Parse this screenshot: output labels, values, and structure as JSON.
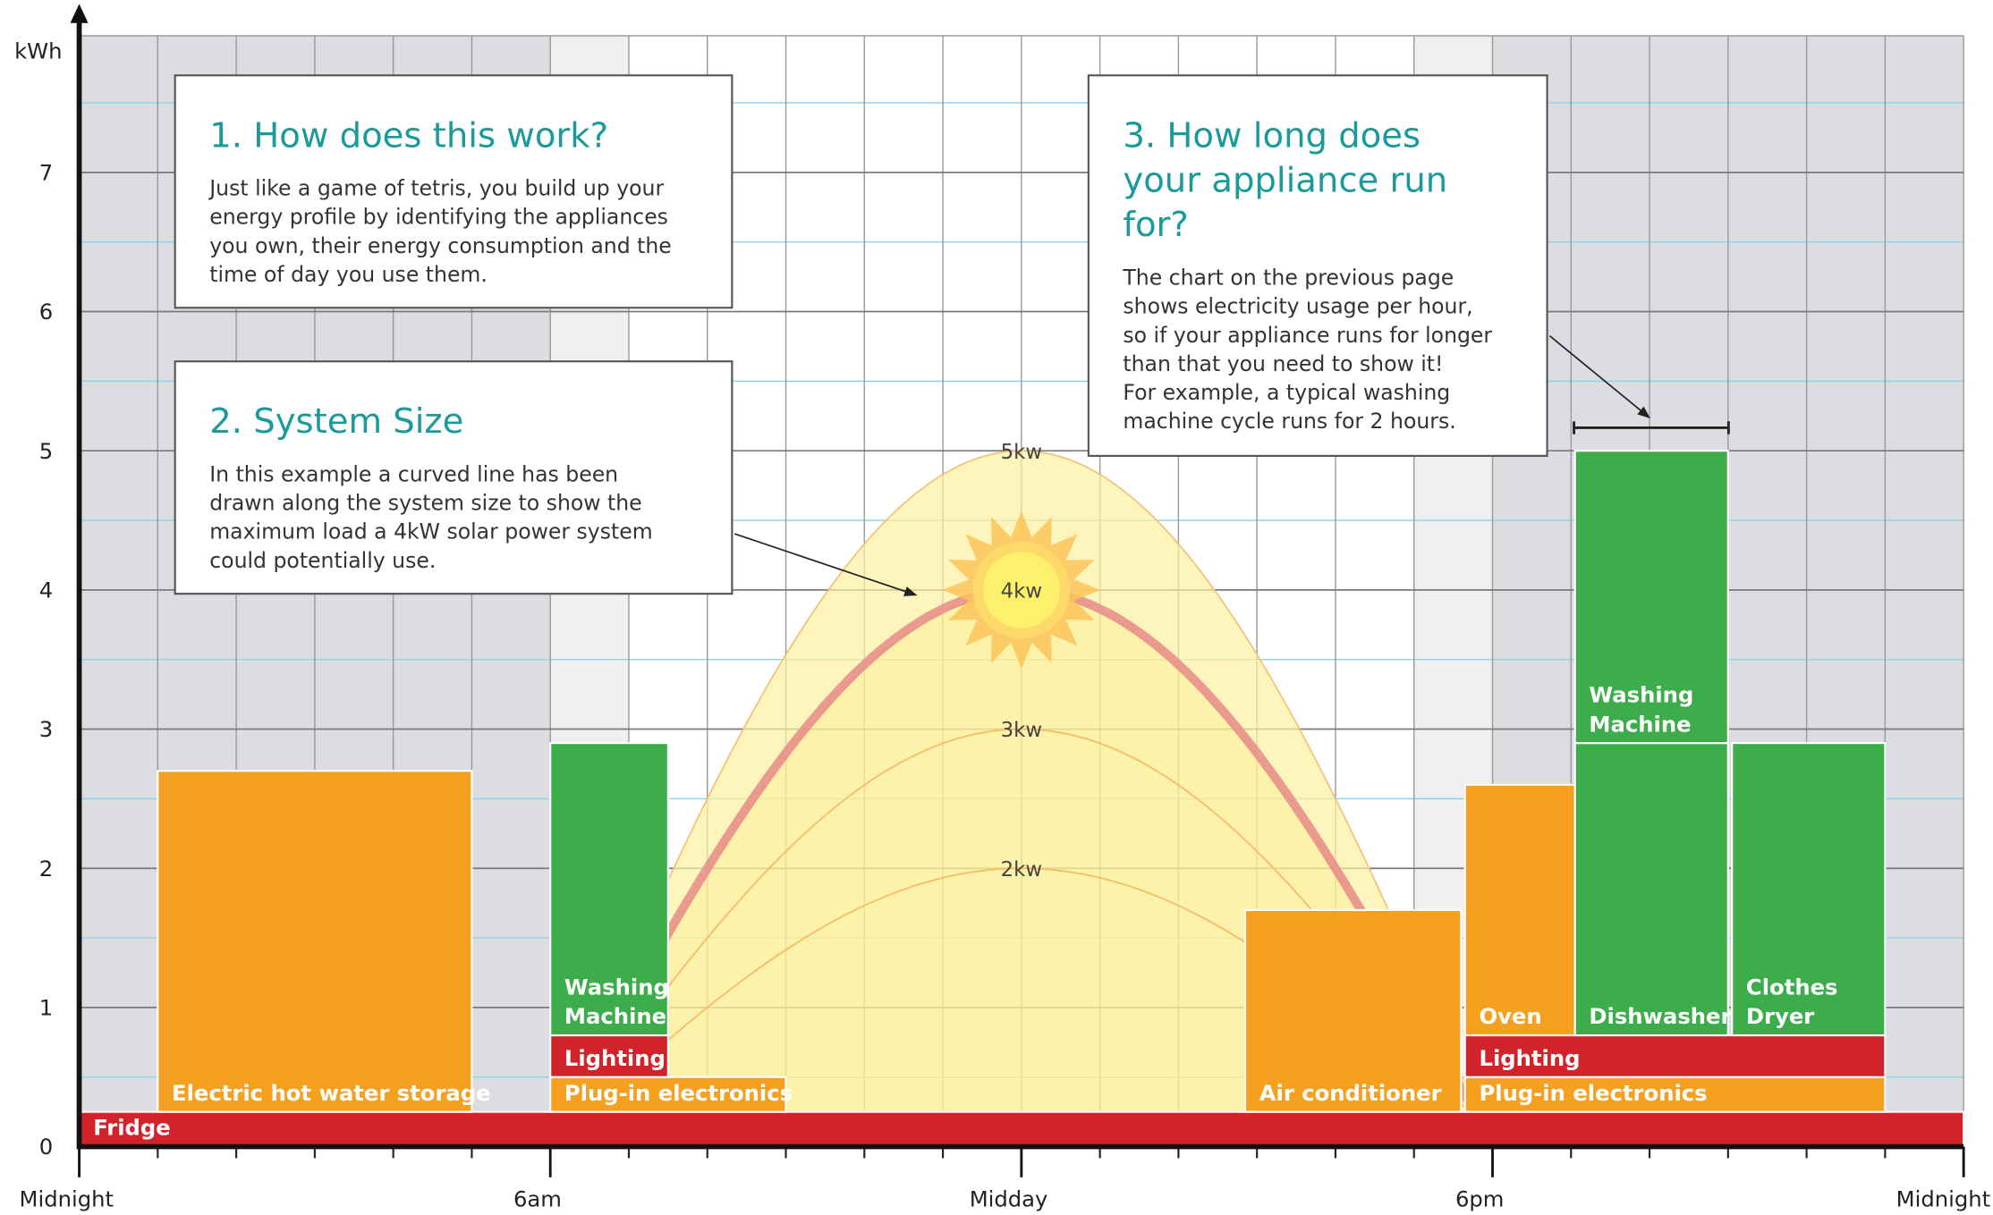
{
  "chart_data": {
    "type": "energy-blocks",
    "ylabel": "kWh",
    "xlim": [
      0,
      24
    ],
    "ylim": [
      0,
      8
    ],
    "yticks": [
      0,
      1,
      2,
      3,
      4,
      5,
      6,
      7
    ],
    "xticks": [
      {
        "value": 0,
        "label": "Midnight"
      },
      {
        "value": 6,
        "label": "6am"
      },
      {
        "value": 12,
        "label": "Midday"
      },
      {
        "value": 18,
        "label": "6pm"
      },
      {
        "value": 24,
        "label": "Midnight"
      }
    ],
    "grid": true,
    "blocks": [
      {
        "label_lines": [
          "Fridge"
        ],
        "start": 0,
        "end": 24,
        "value": 0.25,
        "color": "#d2232a"
      },
      {
        "label_lines": [
          "Electric hot water storage"
        ],
        "start": 1,
        "end": 5,
        "value": 2.45,
        "color": "#f6a01f"
      },
      {
        "label_lines": [
          "Plug-in electronics"
        ],
        "start": 6,
        "end": 9,
        "value": 0.25,
        "color": "#f6a01f"
      },
      {
        "label_lines": [
          "Lighting"
        ],
        "start": 6,
        "end": 7.5,
        "value": 0.3,
        "color": "#d2232a"
      },
      {
        "label_lines": [
          "Washing",
          "Machine"
        ],
        "start": 6,
        "end": 7.5,
        "value": 2.1,
        "color": "#3cad4a"
      },
      {
        "label_lines": [
          "Air conditioner"
        ],
        "start": 14.85,
        "end": 17.6,
        "value": 1.45,
        "color": "#f6a01f"
      },
      {
        "label_lines": [
          "Plug-in electronics"
        ],
        "start": 17.65,
        "end": 23,
        "value": 0.25,
        "color": "#f6a01f"
      },
      {
        "label_lines": [
          "Lighting"
        ],
        "start": 17.65,
        "end": 23,
        "value": 0.3,
        "color": "#d2232a"
      },
      {
        "label_lines": [
          "Oven"
        ],
        "start": 17.65,
        "end": 19.05,
        "value": 1.8,
        "color": "#f6a01f"
      },
      {
        "label_lines": [
          "Dishwasher"
        ],
        "start": 19.05,
        "end": 21,
        "value": 2.1,
        "color": "#3cad4a"
      },
      {
        "label_lines": [
          "Washing",
          "Machine"
        ],
        "start": 19.05,
        "end": 21,
        "value": 2.1,
        "color": "#3cad4a"
      },
      {
        "label_lines": [
          "Clothes",
          "Dryer"
        ],
        "start": 21.05,
        "end": 23,
        "value": 2.1,
        "color": "#3cad4a"
      }
    ],
    "curves": [
      {
        "value": 5,
        "label": "5kw"
      },
      {
        "value": 4,
        "label": "4kw"
      },
      {
        "value": 3,
        "label": "3kw"
      },
      {
        "value": 2,
        "label": "2kw"
      }
    ],
    "notes": [
      {
        "title_lines": [
          "1. How does this work?"
        ],
        "body_lines": [
          "Just like a game of tetris, you build up your",
          "energy profile by identifying the appliances",
          "you own, their energy consumption and the",
          "time of day you use them."
        ]
      },
      {
        "title_lines": [
          "2. System Size"
        ],
        "body_lines": [
          "In this example a curved line has been",
          "drawn along the system size to show the",
          "maximum load a 4kW solar power system",
          "could potentially use."
        ]
      },
      {
        "title_lines": [
          "3. How long does",
          "your appliance run",
          "for?"
        ],
        "body_lines": [
          "The chart on the previous page",
          "shows electricity usage per hour,",
          "so if your appliance runs for longer",
          "than that you need to show it!",
          "For example, a typical washing",
          "machine cycle runs for 2 hours."
        ]
      }
    ]
  }
}
